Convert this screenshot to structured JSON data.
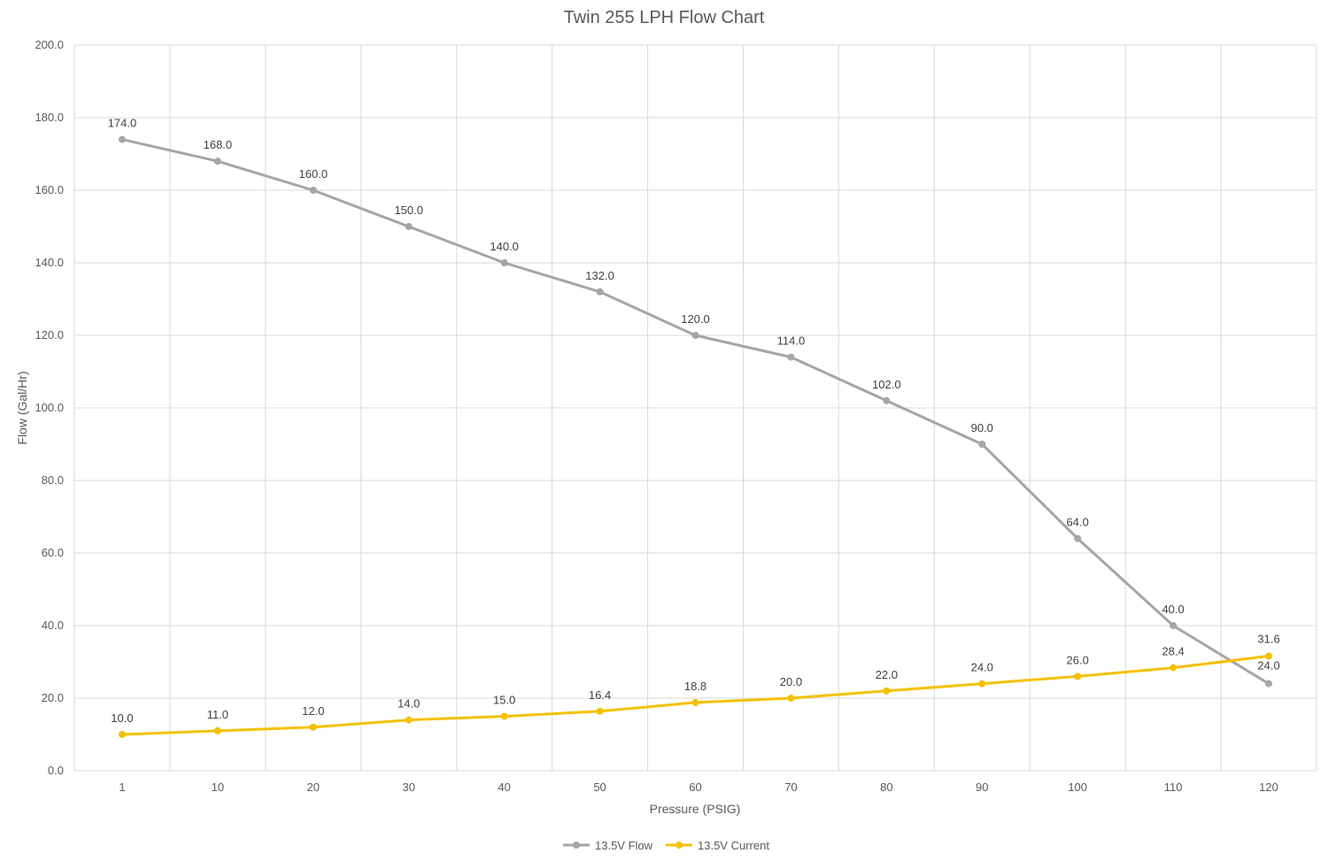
{
  "chart_data": {
    "type": "line",
    "title": "Twin 255 LPH Flow Chart",
    "xlabel": "Pressure (PSIG)",
    "ylabel": "Flow (Gal/Hr)",
    "ylim": [
      0,
      200
    ],
    "yticks": [
      "0.0",
      "20.0",
      "40.0",
      "60.0",
      "80.0",
      "100.0",
      "120.0",
      "140.0",
      "160.0",
      "180.0",
      "200.0"
    ],
    "categories": [
      "1",
      "10",
      "20",
      "30",
      "40",
      "50",
      "60",
      "70",
      "80",
      "90",
      "100",
      "110",
      "120"
    ],
    "grid": true,
    "legend_position": "bottom",
    "series": [
      {
        "name": "13.5V Flow",
        "color": "#a5a5a5",
        "values": [
          174.0,
          168.0,
          160.0,
          150.0,
          140.0,
          132.0,
          120.0,
          114.0,
          102.0,
          90.0,
          64.0,
          40.0,
          24.0
        ],
        "labels": [
          "174.0",
          "168.0",
          "160.0",
          "150.0",
          "140.0",
          "132.0",
          "120.0",
          "114.0",
          "102.0",
          "90.0",
          "64.0",
          "40.0",
          "24.0"
        ]
      },
      {
        "name": "13.5V Current",
        "color": "#f5c000",
        "values": [
          10.0,
          11.0,
          12.0,
          14.0,
          15.0,
          16.4,
          18.8,
          20.0,
          22.0,
          24.0,
          26.0,
          28.4,
          31.6
        ],
        "labels": [
          "10.0",
          "11.0",
          "12.0",
          "14.0",
          "15.0",
          "16.4",
          "18.8",
          "20.0",
          "22.0",
          "24.0",
          "26.0",
          "28.4",
          "31.6"
        ]
      }
    ]
  }
}
